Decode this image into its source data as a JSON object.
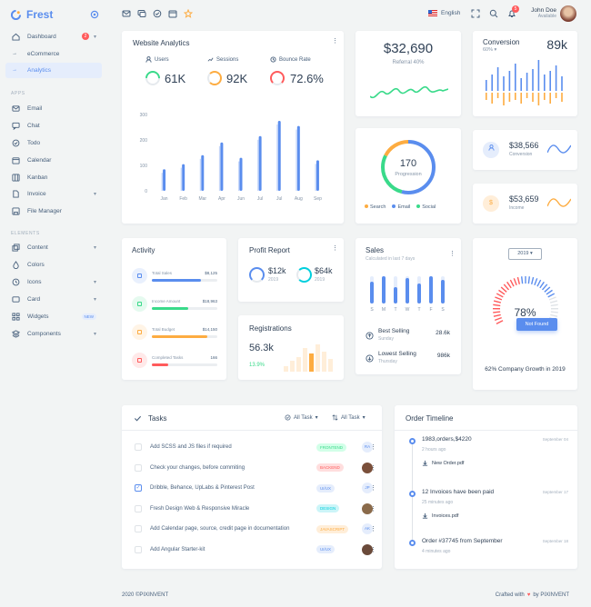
{
  "brand": {
    "name": "Frest"
  },
  "sidebar": {
    "dashboard": "Dashboard",
    "dashboard_badge": "2",
    "ecommerce": "eCommerce",
    "analytics": "Analytics",
    "apps_head": "APPS",
    "apps": [
      "Email",
      "Chat",
      "Todo",
      "Calendar",
      "Kanban",
      "Invoice",
      "File Manager"
    ],
    "elements_head": "ELEMENTS",
    "elements": [
      "Content",
      "Colors",
      "Icons",
      "Card",
      "Widgets",
      "Components"
    ],
    "widgets_badge": "NEW"
  },
  "header": {
    "language": "English",
    "notif_count": "5",
    "user_name": "John Doe",
    "user_status": "Available"
  },
  "analytics": {
    "title": "Website Analytics",
    "stats": [
      {
        "label": "Users",
        "value": "61K"
      },
      {
        "label": "Sessions",
        "value": "92K"
      },
      {
        "label": "Bounce Rate",
        "value": "72.6%"
      }
    ]
  },
  "chart_data": {
    "type": "bar",
    "categories": [
      "Jan",
      "Feb",
      "Mar",
      "Apr",
      "Jun",
      "Jul",
      "Jul",
      "Aug",
      "Sep"
    ],
    "values": [
      85,
      105,
      140,
      190,
      130,
      215,
      275,
      255,
      120
    ],
    "ylim": [
      0,
      300
    ],
    "yticks": [
      "300",
      "200",
      "100",
      "0"
    ]
  },
  "referral": {
    "value": "$32,690",
    "label": "Referral 40%"
  },
  "conversion": {
    "title": "Conversion",
    "value": "89k",
    "pct": "60%"
  },
  "progression": {
    "value": "170",
    "label": "Progression",
    "legend": [
      "Search",
      "Email",
      "Social"
    ]
  },
  "stat1": {
    "value": "$38,566",
    "label": "Conversion"
  },
  "stat2": {
    "value": "$53,659",
    "label": "Income"
  },
  "activity": {
    "title": "Activity",
    "items": [
      {
        "label": "Total Sales",
        "value": "$8,125",
        "color": "#5a8dee",
        "pct": 0.75
      },
      {
        "label": "Income Amount",
        "value": "$18,963",
        "color": "#39da8a",
        "pct": 0.55
      },
      {
        "label": "Total Budget",
        "value": "$14,150",
        "color": "#fdac41",
        "pct": 0.85
      },
      {
        "label": "Completed Tasks",
        "value": "166",
        "color": "#ff5b5c",
        "pct": 0.25
      }
    ]
  },
  "profit": {
    "title": "Profit Report",
    "v1": "$12k",
    "y1": "2019",
    "v2": "$64k",
    "y2": "2019"
  },
  "registrations": {
    "title": "Registrations",
    "value": "56.3k",
    "pct": "13.9%"
  },
  "sales": {
    "title": "Sales",
    "subtitle": "Calculated in last 7 days",
    "days": [
      "S",
      "M",
      "T",
      "W",
      "T",
      "F",
      "S"
    ],
    "best": "Best Selling",
    "best_sub": "Sunday",
    "best_val": "28.6k",
    "lowest": "Lowest Selling",
    "lowest_sub": "Thursday",
    "lowest_val": "986k"
  },
  "growth": {
    "year": "2019",
    "pct": "78%",
    "badge": "Not Found",
    "caption": "62% Company Growth in 2019"
  },
  "tasks": {
    "title": "Tasks",
    "filter1": "All Task",
    "filter2": "All Task",
    "rows": [
      {
        "text": "Add SCSS and JS files if required",
        "tag": "FRONTEND",
        "tag_color": "#39da8a",
        "tag_bg": "#d2ffe8",
        "av": "RA",
        "av_bg": "#e5edfc",
        "av_fg": "#5a8dee",
        "checked": false
      },
      {
        "text": "Check your changes, before commiting",
        "tag": "BACKEND",
        "tag_color": "#ff5b5c",
        "tag_bg": "#ffdede",
        "av": "",
        "av_bg": "#7a4f3a",
        "av_fg": "#fff",
        "checked": false
      },
      {
        "text": "Dribble, Behance, UpLabs & Pinterest Post",
        "tag": "UI/UX",
        "tag_color": "#5a8dee",
        "tag_bg": "#e5edfc",
        "av": "JP",
        "av_bg": "#e5edfc",
        "av_fg": "#5a8dee",
        "checked": true
      },
      {
        "text": "Fresh Design Web & Responsive Miracle",
        "tag": "DESIGN",
        "tag_color": "#00cfdd",
        "tag_bg": "#ccf5f8",
        "av": "",
        "av_bg": "#8a6a4a",
        "av_fg": "#fff",
        "checked": false
      },
      {
        "text": "Add Calendar page, source, credit page in documentation",
        "tag": "JAVASCRIPT",
        "tag_color": "#fdac41",
        "tag_bg": "#ffeed9",
        "av": "AK",
        "av_bg": "#e5edfc",
        "av_fg": "#5a8dee",
        "checked": false
      },
      {
        "text": "Add Angular Starter-kit",
        "tag": "UI/UX",
        "tag_color": "#5a8dee",
        "tag_bg": "#e5edfc",
        "av": "",
        "av_bg": "#6a4a3a",
        "av_fg": "#fff",
        "checked": false
      }
    ]
  },
  "timeline": {
    "title": "Order Timeline",
    "items": [
      {
        "title": "1983,orders,$4220",
        "date": "September 04",
        "ago": "2 hours ago",
        "file": "New Order.pdf"
      },
      {
        "title": "12 Invoices have been paid",
        "date": "September 17",
        "ago": "25 minutes ago",
        "file": "Invoices.pdf"
      },
      {
        "title": "Order #37745 from September",
        "date": "September 18",
        "ago": "4 minutes ago",
        "file": ""
      }
    ]
  },
  "footer": {
    "left": "2020 ©PIXINVENT",
    "right_a": "Crafted with",
    "right_b": "by PIXINVENT"
  }
}
